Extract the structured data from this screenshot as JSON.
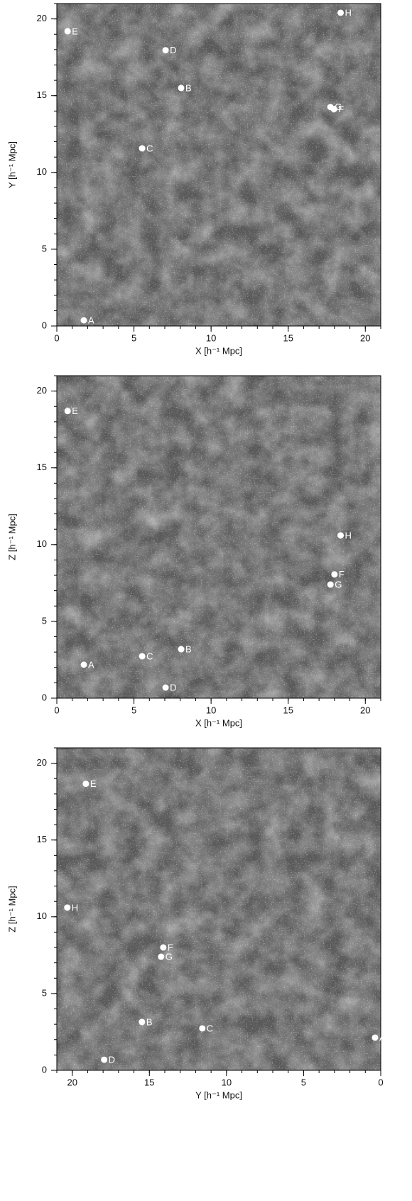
{
  "chart_data": [
    {
      "type": "scatter",
      "x_label": "X [h⁻¹ Mpc]",
      "y_label": "Y [h⁻¹ Mpc]",
      "xlim": [
        0,
        21
      ],
      "ylim": [
        0,
        21
      ],
      "xticks": [
        0,
        5,
        10,
        15,
        20
      ],
      "yticks": [
        0,
        5,
        10,
        15,
        20
      ],
      "color": "#ffffff",
      "labels": [
        "A",
        "B",
        "C",
        "D",
        "E",
        "F",
        "G",
        "H"
      ],
      "x": [
        1.75,
        8.06,
        5.53,
        7.05,
        0.7,
        17.97,
        17.74,
        18.4
      ],
      "y": [
        0.37,
        15.5,
        11.57,
        17.96,
        19.2,
        14.12,
        14.26,
        20.4
      ]
    },
    {
      "type": "scatter",
      "x_label": "X [h⁻¹ Mpc]",
      "y_label": "Z [h⁻¹ Mpc]",
      "xlim": [
        0,
        21
      ],
      "ylim": [
        0,
        21
      ],
      "xticks": [
        0,
        5,
        10,
        15,
        20
      ],
      "yticks": [
        0,
        5,
        10,
        15,
        20
      ],
      "color": "#ffffff",
      "labels": [
        "A",
        "B",
        "C",
        "D",
        "E",
        "F",
        "G",
        "H"
      ],
      "x": [
        1.75,
        8.06,
        5.53,
        7.05,
        0.7,
        18.0,
        17.74,
        18.4
      ],
      "y": [
        2.18,
        3.19,
        2.73,
        0.69,
        18.7,
        8.06,
        7.4,
        10.6
      ]
    },
    {
      "type": "scatter",
      "x_label": "Y [h⁻¹ Mpc]",
      "y_label": "Z [h⁻¹ Mpc]",
      "xlim": [
        21,
        0
      ],
      "ylim": [
        0,
        21
      ],
      "xticks": [
        20,
        15,
        10,
        5,
        0
      ],
      "yticks": [
        0,
        5,
        10,
        15,
        20
      ],
      "color": "#ffffff",
      "labels": [
        "A",
        "B",
        "C",
        "D",
        "E",
        "F",
        "G",
        "H"
      ],
      "x": [
        0.37,
        15.48,
        11.57,
        17.93,
        19.12,
        14.1,
        14.24,
        20.32
      ],
      "y": [
        2.13,
        3.15,
        2.73,
        0.69,
        18.66,
        8.0,
        7.4,
        10.6
      ]
    }
  ]
}
